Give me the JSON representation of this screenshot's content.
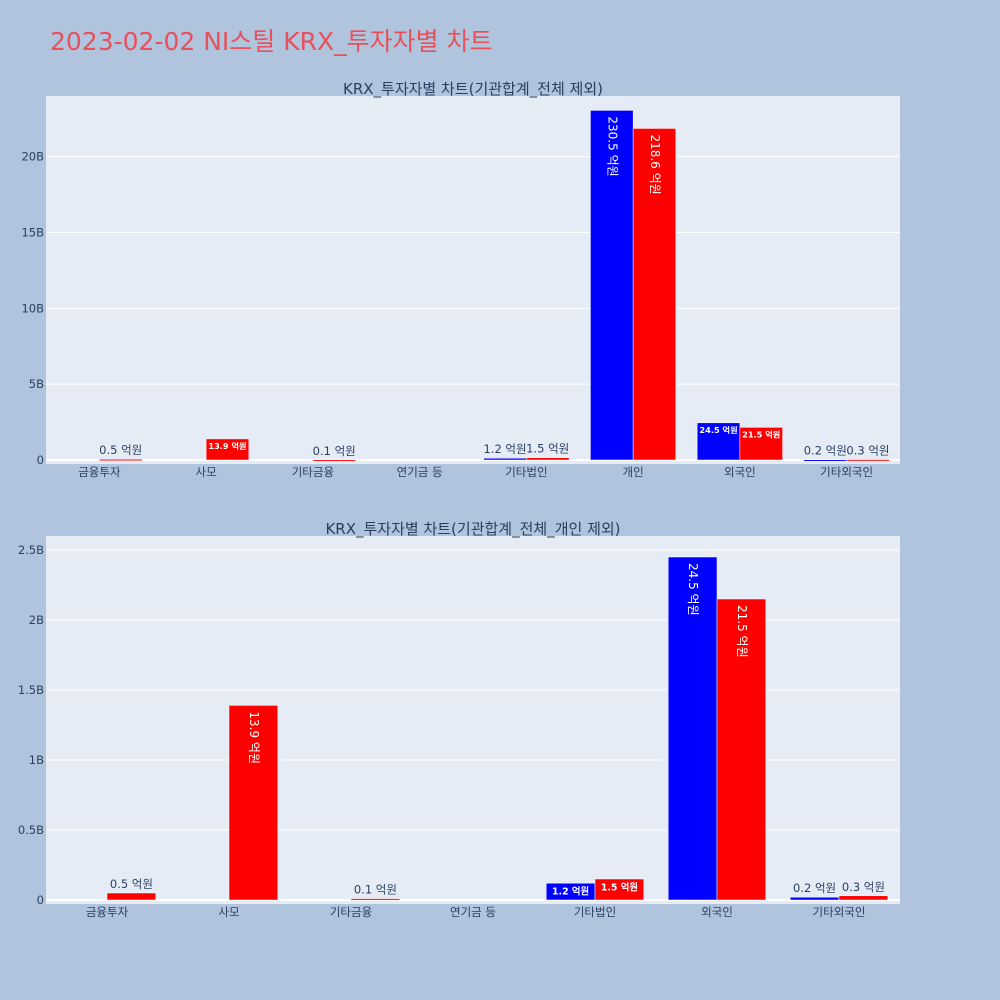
{
  "title": "2023-02-02 NI스틸 KRX_투자자별 차트",
  "colors": {
    "buy": "#0000ff",
    "sell": "#ff0000",
    "plot_bg": "#e5ecf6",
    "page_bg": "#b0c4de",
    "title": "#e8505b"
  },
  "chart_data": [
    {
      "type": "bar",
      "title": "KRX_투자자별 차트(기관합계_전체 제외)",
      "categories": [
        "금융투자",
        "사모",
        "기타금융",
        "연기금 등",
        "기타법인",
        "개인",
        "외국인",
        "기타외국인"
      ],
      "series": [
        {
          "values": [
            0,
            0,
            0,
            0,
            0.12,
            23.05,
            2.45,
            0.02
          ],
          "labels": [
            "",
            "",
            "",
            "",
            "1.2 억원",
            "230.5 억원",
            "24.5 억원",
            "0.2 억원"
          ]
        },
        {
          "values": [
            0.05,
            1.39,
            0.01,
            0,
            0.15,
            21.86,
            2.15,
            0.03
          ],
          "labels": [
            "0.5 억원",
            "13.9 억원",
            "0.1 억원",
            "",
            "1.5 억원",
            "218.6 억원",
            "21.5 억원",
            "0.3 억원"
          ]
        }
      ],
      "yticks": [
        0,
        5,
        10,
        15,
        20
      ],
      "ytick_labels": [
        "0",
        "5B",
        "10B",
        "15B",
        "20B"
      ],
      "ylim": [
        0,
        24
      ],
      "grid": true
    },
    {
      "type": "bar",
      "title": "KRX_투자자별 차트(기관합계_전체_개인 제외)",
      "categories": [
        "금융투자",
        "사모",
        "기타금융",
        "연기금 등",
        "기타법인",
        "외국인",
        "기타외국인"
      ],
      "series": [
        {
          "values": [
            0,
            0,
            0,
            0,
            0.12,
            2.45,
            0.02
          ],
          "labels": [
            "",
            "",
            "",
            "",
            "1.2 억원",
            "24.5 억원",
            "0.2 억원"
          ]
        },
        {
          "values": [
            0.05,
            1.39,
            0.01,
            0,
            0.15,
            2.15,
            0.03
          ],
          "labels": [
            "0.5 억원",
            "13.9 억원",
            "0.1 억원",
            "",
            "1.5 억원",
            "21.5 억원",
            "0.3 억원"
          ]
        }
      ],
      "yticks": [
        0,
        0.5,
        1,
        1.5,
        2,
        2.5
      ],
      "ytick_labels": [
        "0",
        "0.5B",
        "1B",
        "1.5B",
        "2B",
        "2.5B"
      ],
      "ylim": [
        0,
        2.6
      ],
      "grid": true
    }
  ]
}
